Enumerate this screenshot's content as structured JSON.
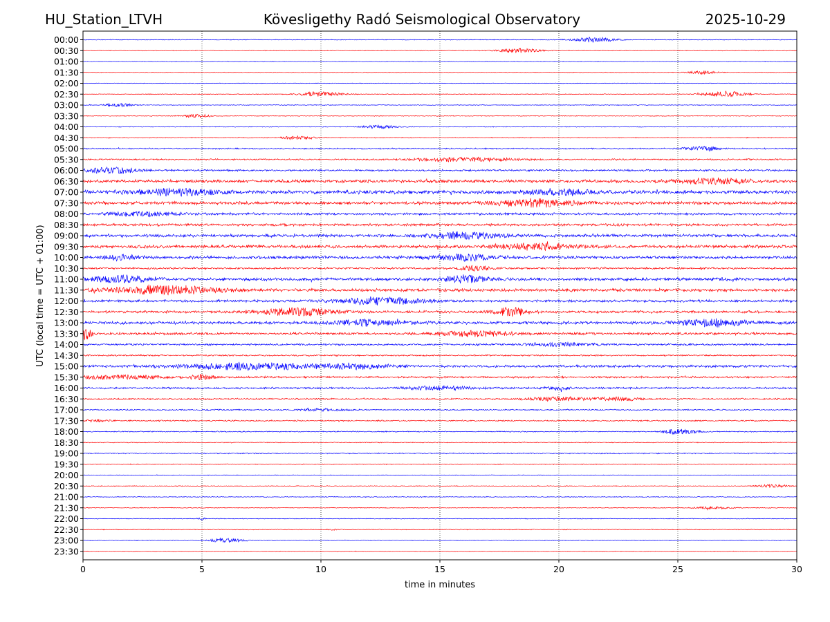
{
  "header": {
    "station": "HU_Station_LTVH",
    "observatory": "Kövesligethy Radó Seismological Observatory",
    "date": "2025-10-29"
  },
  "chart_data": {
    "type": "line",
    "title": "Kövesligethy Radó Seismological Observatory",
    "xlabel": "time in minutes",
    "ylabel": "UTC (local time = UTC + 01:00)",
    "xlim": [
      0,
      30
    ],
    "xticks": [
      "0",
      "5",
      "10",
      "15",
      "20",
      "25",
      "30"
    ],
    "grid": "vertical dotted at each x tick",
    "colors": {
      "even_rows": "#0000ff",
      "odd_rows": "#ff0000",
      "axis": "#000000"
    },
    "rows": [
      {
        "label": "00:00",
        "level": 0.6,
        "bursts": [
          [
            21.5,
            0.6,
            3.5
          ]
        ]
      },
      {
        "label": "00:30",
        "level": 0.6,
        "bursts": [
          [
            18.3,
            0.6,
            3
          ]
        ]
      },
      {
        "label": "01:00",
        "level": 0.5,
        "bursts": []
      },
      {
        "label": "01:30",
        "level": 0.5,
        "bursts": [
          [
            26,
            0.4,
            2.5
          ]
        ]
      },
      {
        "label": "02:00",
        "level": 0.5,
        "bursts": []
      },
      {
        "label": "02:30",
        "level": 0.6,
        "bursts": [
          [
            10,
            0.6,
            3.5
          ],
          [
            27,
            0.6,
            4
          ]
        ]
      },
      {
        "label": "03:00",
        "level": 0.6,
        "bursts": [
          [
            1.5,
            0.4,
            2.5
          ]
        ]
      },
      {
        "label": "03:30",
        "level": 0.6,
        "bursts": [
          [
            4.8,
            0.4,
            2.5
          ]
        ]
      },
      {
        "label": "04:00",
        "level": 0.6,
        "bursts": [
          [
            12.5,
            0.5,
            2.5
          ]
        ]
      },
      {
        "label": "04:30",
        "level": 0.7,
        "bursts": [
          [
            9,
            0.5,
            2.5
          ]
        ]
      },
      {
        "label": "05:00",
        "level": 1.1,
        "bursts": [
          [
            26,
            0.5,
            3.5
          ]
        ]
      },
      {
        "label": "05:30",
        "level": 1.3,
        "bursts": [
          [
            16,
            1.5,
            2.5
          ]
        ]
      },
      {
        "label": "06:00",
        "level": 1.6,
        "bursts": [
          [
            1.2,
            0.8,
            4
          ]
        ]
      },
      {
        "label": "06:30",
        "level": 2.6,
        "bursts": [
          [
            26.5,
            1.0,
            3.5
          ]
        ]
      },
      {
        "label": "07:00",
        "level": 3.1,
        "bursts": [
          [
            4,
            1.2,
            4
          ],
          [
            20,
            1.0,
            3.5
          ]
        ]
      },
      {
        "label": "07:30",
        "level": 2.6,
        "bursts": [
          [
            19,
            1.2,
            5
          ]
        ]
      },
      {
        "label": "08:00",
        "level": 2.1,
        "bursts": [
          [
            2.5,
            1.0,
            2.5
          ]
        ]
      },
      {
        "label": "08:30",
        "level": 2.1,
        "bursts": []
      },
      {
        "label": "09:00",
        "level": 2.6,
        "bursts": [
          [
            16,
            1.0,
            4.5
          ]
        ]
      },
      {
        "label": "09:30",
        "level": 2.6,
        "bursts": [
          [
            19,
            1.2,
            4
          ]
        ]
      },
      {
        "label": "10:00",
        "level": 2.6,
        "bursts": [
          [
            1.5,
            0.5,
            3.5
          ],
          [
            16,
            1.0,
            3.5
          ]
        ]
      },
      {
        "label": "10:30",
        "level": 1.6,
        "bursts": [
          [
            16.5,
            0.5,
            3
          ]
        ]
      },
      {
        "label": "11:00",
        "level": 2.6,
        "bursts": [
          [
            1.5,
            1.0,
            4
          ],
          [
            16,
            0.6,
            5
          ]
        ]
      },
      {
        "label": "11:30",
        "level": 2.6,
        "bursts": [
          [
            3.5,
            1.5,
            5.5
          ]
        ]
      },
      {
        "label": "12:00",
        "level": 2.1,
        "bursts": [
          [
            12.5,
            1.2,
            5
          ]
        ]
      },
      {
        "label": "12:30",
        "level": 2.1,
        "bursts": [
          [
            9,
            1.0,
            5.5
          ],
          [
            18,
            0.5,
            6
          ]
        ]
      },
      {
        "label": "13:00",
        "level": 2.6,
        "bursts": [
          [
            12,
            1.0,
            3.5
          ],
          [
            26.5,
            1.0,
            4.5
          ]
        ]
      },
      {
        "label": "13:30",
        "level": 2.1,
        "bursts": [
          [
            0.1,
            0.2,
            7.5
          ],
          [
            16.5,
            1.0,
            4
          ]
        ]
      },
      {
        "label": "14:00",
        "level": 1.6,
        "bursts": [
          [
            20,
            1.0,
            2.5
          ]
        ]
      },
      {
        "label": "14:30",
        "level": 1.3,
        "bursts": []
      },
      {
        "label": "15:00",
        "level": 2.1,
        "bursts": [
          [
            7,
            2.0,
            4.5
          ],
          [
            11.5,
            1.0,
            3
          ]
        ]
      },
      {
        "label": "15:30",
        "level": 1.6,
        "bursts": [
          [
            1.5,
            1.5,
            2.5
          ],
          [
            5,
            0.4,
            3
          ]
        ]
      },
      {
        "label": "16:00",
        "level": 1.6,
        "bursts": [
          [
            15,
            1.0,
            2.5
          ],
          [
            20,
            0.4,
            2.5
          ]
        ]
      },
      {
        "label": "16:30",
        "level": 1.3,
        "bursts": [
          [
            20,
            1.0,
            2.5
          ],
          [
            22.5,
            0.6,
            2.5
          ]
        ]
      },
      {
        "label": "17:00",
        "level": 1.1,
        "bursts": [
          [
            10,
            0.8,
            1.5
          ]
        ]
      },
      {
        "label": "17:30",
        "level": 1.1,
        "bursts": [
          [
            0.5,
            0.4,
            1.5
          ]
        ]
      },
      {
        "label": "18:00",
        "level": 0.9,
        "bursts": [
          [
            24.8,
            0.3,
            3
          ],
          [
            25.5,
            0.4,
            2.5
          ]
        ]
      },
      {
        "label": "18:30",
        "level": 0.7,
        "bursts": []
      },
      {
        "label": "19:00",
        "level": 0.9,
        "bursts": []
      },
      {
        "label": "19:30",
        "level": 0.7,
        "bursts": []
      },
      {
        "label": "20:00",
        "level": 0.5,
        "bursts": []
      },
      {
        "label": "20:30",
        "level": 0.6,
        "bursts": [
          [
            29,
            0.5,
            2
          ]
        ]
      },
      {
        "label": "21:00",
        "level": 0.7,
        "bursts": []
      },
      {
        "label": "21:30",
        "level": 0.6,
        "bursts": [
          [
            26.5,
            0.6,
            1.5
          ]
        ]
      },
      {
        "label": "22:00",
        "level": 0.6,
        "bursts": [
          [
            5,
            0.1,
            2
          ]
        ]
      },
      {
        "label": "22:30",
        "level": 0.6,
        "bursts": [
          [
            10.5,
            0.1,
            1
          ]
        ]
      },
      {
        "label": "23:00",
        "level": 0.6,
        "bursts": [
          [
            6,
            0.5,
            3
          ]
        ]
      },
      {
        "label": "23:30",
        "level": 0.5,
        "bursts": []
      }
    ]
  }
}
